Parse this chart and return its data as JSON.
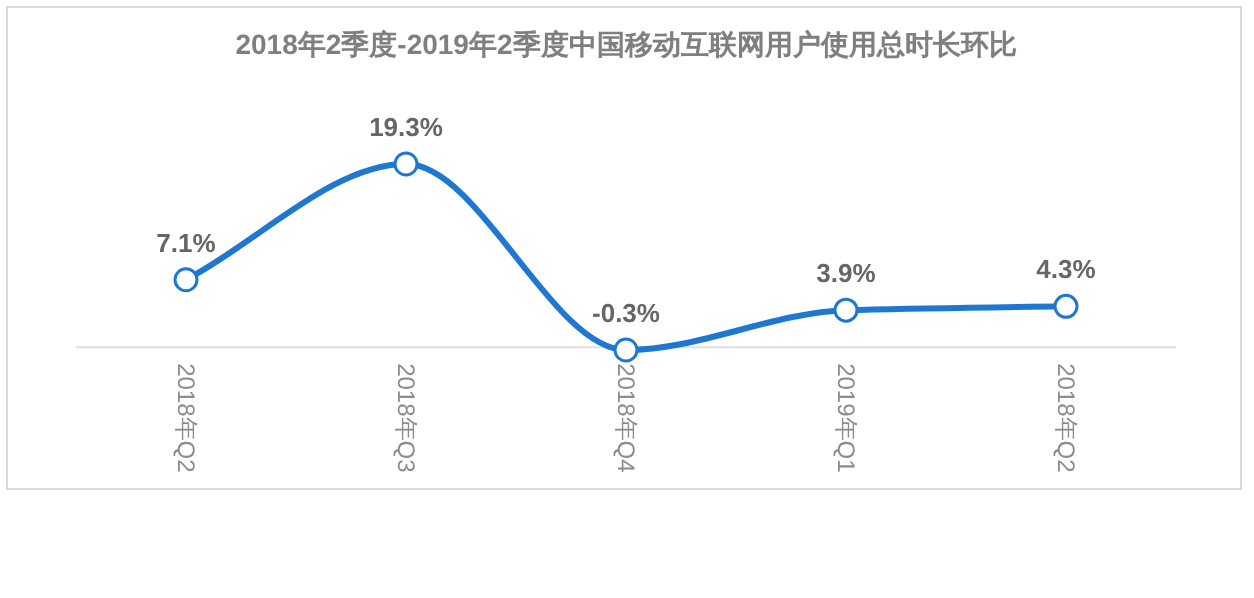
{
  "chart_data": {
    "type": "line",
    "title": "2018年2季度-2019年2季度中国移动互联网用户使用总时长环比",
    "categories": [
      "2018年Q2",
      "2018年Q3",
      "2018年Q4",
      "2019年Q1",
      "2018年Q2"
    ],
    "series": [
      {
        "color": "#1e78d2",
        "values": [
          7.1,
          19.3,
          -0.3,
          3.9,
          4.3
        ],
        "value_labels": [
          "7.1%",
          "19.3%",
          "-0.3%",
          "3.9%",
          "4.3%"
        ]
      }
    ],
    "marker": "circle",
    "line_style": "solid"
  }
}
